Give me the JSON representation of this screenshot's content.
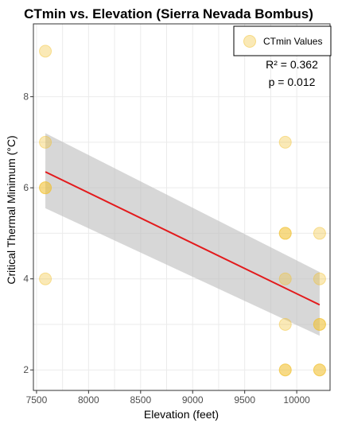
{
  "chart_data": {
    "type": "scatter",
    "title": "CTmin vs. Elevation (Sierra Nevada Bombus)",
    "xlabel": "Elevation (feet)",
    "ylabel": "Critical Thermal Minimum (°C)",
    "xlim": [
      7470,
      10320
    ],
    "ylim": [
      1.55,
      9.6
    ],
    "x_ticks": [
      7500,
      8000,
      8500,
      9000,
      9500,
      10000
    ],
    "y_ticks": [
      2,
      4,
      6,
      8
    ],
    "legend": {
      "label": "CTmin Values",
      "placement": "top-right"
    },
    "annotations": [
      "R² = 0.362",
      "p = 0.012"
    ],
    "series": [
      {
        "name": "CTmin Values",
        "color": "#f2c12e",
        "points": [
          {
            "x": 7585,
            "y": 9
          },
          {
            "x": 7585,
            "y": 7
          },
          {
            "x": 7585,
            "y": 6
          },
          {
            "x": 7585,
            "y": 6
          },
          {
            "x": 7585,
            "y": 4
          },
          {
            "x": 9890,
            "y": 7
          },
          {
            "x": 9890,
            "y": 5
          },
          {
            "x": 9890,
            "y": 5
          },
          {
            "x": 9890,
            "y": 4
          },
          {
            "x": 9890,
            "y": 3
          },
          {
            "x": 9890,
            "y": 2
          },
          {
            "x": 9890,
            "y": 2
          },
          {
            "x": 10220,
            "y": 5
          },
          {
            "x": 10220,
            "y": 4
          },
          {
            "x": 10220,
            "y": 3
          },
          {
            "x": 10220,
            "y": 3
          },
          {
            "x": 10220,
            "y": 2
          },
          {
            "x": 10220,
            "y": 2
          }
        ]
      }
    ],
    "regression": {
      "color": "#e31a1c",
      "band_color": "#bdbdbd",
      "line": [
        {
          "x": 7585,
          "y": 6.35
        },
        {
          "x": 10220,
          "y": 3.43
        }
      ],
      "band_upper": [
        {
          "x": 7585,
          "y": 7.2
        },
        {
          "x": 10220,
          "y": 4.15
        }
      ],
      "band_lower": [
        {
          "x": 7585,
          "y": 5.55
        },
        {
          "x": 10220,
          "y": 2.75
        }
      ]
    },
    "grid": true
  }
}
